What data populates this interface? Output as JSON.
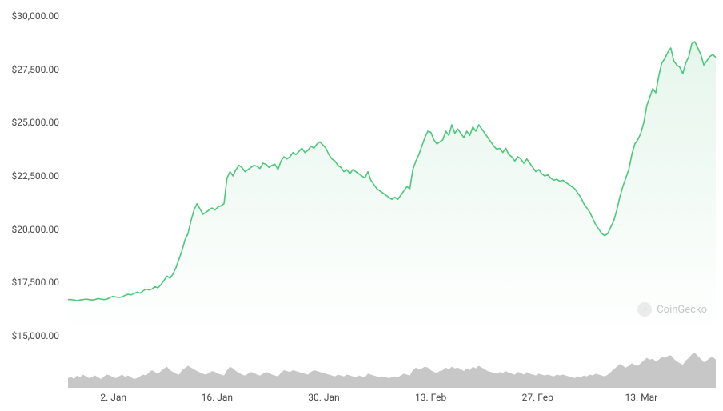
{
  "chart": {
    "type": "area",
    "ylim": [
      15000,
      30000
    ],
    "ytick_step": 2500,
    "ytick_labels": [
      "$15,000.00",
      "$17,500.00",
      "$20,000.00",
      "$22,500.00",
      "$25,000.00",
      "$27,500.00",
      "$30,000.00"
    ],
    "x_categories": [
      "2. Jan",
      "16. Jan",
      "30. Jan",
      "13. Feb",
      "27. Feb",
      "13. Mar"
    ],
    "x_positions_pct": [
      7,
      23,
      39.5,
      56,
      72.5,
      88.5
    ],
    "line_color": "#4bc97a",
    "line_width": 1.6,
    "fill_top_color": "#e6f6ec",
    "fill_bottom_color": "#ffffff",
    "grid_color": "none",
    "background_color": "#ffffff",
    "label_fontsize": 12,
    "label_color": "#4a4a4a",
    "prices": [
      16700,
      16700,
      16680,
      16650,
      16680,
      16700,
      16720,
      16700,
      16680,
      16700,
      16750,
      16720,
      16700,
      16720,
      16800,
      16850,
      16820,
      16800,
      16820,
      16900,
      16950,
      16920,
      16980,
      17050,
      17000,
      17100,
      17200,
      17150,
      17200,
      17300,
      17250,
      17400,
      17600,
      17800,
      17700,
      17900,
      18200,
      18600,
      19000,
      19500,
      19800,
      20400,
      20900,
      21200,
      20950,
      20700,
      20800,
      20900,
      21000,
      20900,
      21050,
      21100,
      21200,
      22400,
      22700,
      22500,
      22800,
      23000,
      22900,
      22700,
      22800,
      22900,
      23000,
      22950,
      22850,
      23100,
      23050,
      22900,
      23000,
      23050,
      22800,
      23200,
      23400,
      23300,
      23400,
      23600,
      23500,
      23650,
      23800,
      23600,
      23700,
      23900,
      23800,
      24000,
      24100,
      23950,
      23800,
      23500,
      23300,
      23200,
      23000,
      22900,
      22700,
      22800,
      22600,
      22800,
      22700,
      22600,
      22500,
      22400,
      22700,
      22300,
      22100,
      21900,
      21800,
      21700,
      21600,
      21500,
      21400,
      21500,
      21400,
      21600,
      21800,
      22000,
      21900,
      22800,
      23200,
      23500,
      23900,
      24300,
      24600,
      24550,
      24200,
      24000,
      24100,
      24200,
      24600,
      24400,
      24900,
      24500,
      24700,
      24500,
      24300,
      24600,
      24400,
      24800,
      24600,
      24900,
      24700,
      24500,
      24300,
      24100,
      23900,
      23750,
      23800,
      23600,
      23800,
      23500,
      23400,
      23200,
      23400,
      23300,
      23100,
      23300,
      23100,
      22900,
      22700,
      22800,
      22600,
      22500,
      22550,
      22400,
      22300,
      22350,
      22250,
      22300,
      22200,
      22100,
      22000,
      21900,
      21700,
      21500,
      21200,
      21000,
      20800,
      20500,
      20200,
      20000,
      19800,
      19700,
      19800,
      20100,
      20400,
      20900,
      21500,
      22000,
      22400,
      22800,
      23500,
      24000,
      24200,
      24500,
      25000,
      25800,
      26200,
      26600,
      26400,
      27200,
      27800,
      28000,
      28300,
      28500,
      27900,
      27700,
      27600,
      27300,
      27800,
      28100,
      28700,
      28800,
      28500,
      28200,
      27700,
      27900,
      28100,
      28200,
      28060
    ]
  },
  "volume": {
    "type": "area",
    "fill_color": "#c7c7c7",
    "max_value": 100,
    "values": [
      22,
      25,
      20,
      28,
      24,
      30,
      26,
      22,
      25,
      28,
      24,
      20,
      26,
      30,
      28,
      24,
      22,
      26,
      30,
      25,
      28,
      24,
      20,
      22,
      26,
      30,
      28,
      35,
      40,
      36,
      32,
      38,
      44,
      48,
      40,
      36,
      32,
      30,
      40,
      45,
      50,
      46,
      42,
      38,
      35,
      32,
      30,
      34,
      38,
      36,
      32,
      30,
      28,
      40,
      48,
      44,
      38,
      34,
      30,
      28,
      32,
      36,
      34,
      30,
      28,
      32,
      36,
      34,
      30,
      28,
      26,
      34,
      40,
      38,
      36,
      40,
      38,
      36,
      34,
      32,
      30,
      36,
      40,
      38,
      36,
      34,
      32,
      30,
      28,
      26,
      30,
      28,
      26,
      30,
      28,
      26,
      24,
      28,
      26,
      24,
      32,
      30,
      28,
      26,
      24,
      26,
      24,
      22,
      24,
      26,
      24,
      28,
      32,
      30,
      28,
      40,
      46,
      42,
      44,
      48,
      46,
      40,
      36,
      34,
      38,
      40,
      46,
      42,
      48,
      44,
      46,
      42,
      38,
      44,
      40,
      48,
      44,
      50,
      46,
      42,
      38,
      36,
      34,
      32,
      36,
      34,
      38,
      34,
      32,
      30,
      36,
      34,
      30,
      36,
      32,
      30,
      28,
      32,
      30,
      28,
      30,
      28,
      26,
      30,
      28,
      30,
      28,
      26,
      24,
      22,
      26,
      24,
      28,
      26,
      30,
      28,
      32,
      30,
      28,
      26,
      30,
      36,
      42,
      48,
      54,
      50,
      46,
      50,
      56,
      52,
      50,
      56,
      62,
      68,
      64,
      66,
      60,
      64,
      70,
      68,
      72,
      74,
      66,
      60,
      56,
      52,
      62,
      68,
      76,
      80,
      72,
      66,
      58,
      62,
      68,
      70,
      64
    ]
  },
  "watermark": {
    "text": "CoinGecko",
    "icon_glyph": "◔"
  }
}
